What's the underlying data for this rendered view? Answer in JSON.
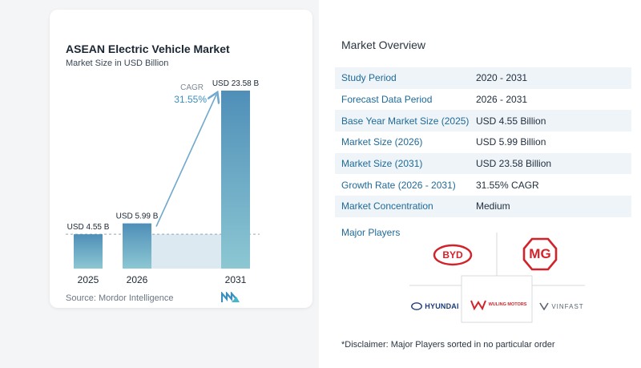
{
  "chart_data": {
    "type": "bar",
    "title": "ASEAN Electric Vehicle Market",
    "subtitle": "Market Size in USD Billion",
    "categories": [
      "2025",
      "2026",
      "2031"
    ],
    "values": [
      4.55,
      5.99,
      23.58
    ],
    "data_labels": [
      "USD 4.55 B",
      "USD 5.99 B",
      "USD 23.58 B"
    ],
    "ylim": [
      0,
      23.58
    ],
    "cagr_label": "CAGR",
    "cagr_value": "31.55%",
    "colors": {
      "bar_top": "#4f8fb8",
      "bar_bottom": "#8cc7d3",
      "arrow": "#6fa8cc",
      "band": "#dde9f1"
    }
  },
  "source": "Source:  Mordor Intelligence",
  "overview": {
    "title": "Market Overview",
    "rows": [
      {
        "label": "Study Period",
        "value": "2020 - 2031"
      },
      {
        "label": "Forecast Data Period",
        "value": "2026 - 2031"
      },
      {
        "label": "Base Year Market Size (2025)",
        "value": "USD 4.55 Billion"
      },
      {
        "label": "Market Size (2026)",
        "value": "USD 5.99 Billion"
      },
      {
        "label": "Market Size (2031)",
        "value": "USD 23.58 Billion"
      },
      {
        "label": "Growth Rate (2026 - 2031)",
        "value": "31.55% CAGR"
      },
      {
        "label": "Market Concentration",
        "value": "Medium"
      }
    ]
  },
  "players": {
    "title": "Major Players",
    "brands": [
      "BYD",
      "MG",
      "HYUNDAI",
      "WULING MOTORS",
      "VINFAST"
    ]
  },
  "disclaimer": "*Disclaimer: Major Players sorted in no particular order"
}
